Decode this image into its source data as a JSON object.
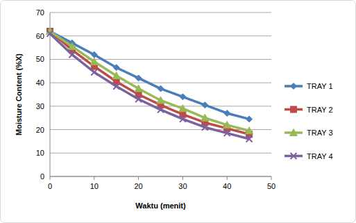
{
  "chart_data": {
    "type": "line",
    "x_label": "Waktu (menit)",
    "y_label": "Moisture Content (%X)",
    "x": [
      0,
      5,
      10,
      15,
      20,
      25,
      30,
      35,
      40,
      45
    ],
    "xlim": [
      0,
      50
    ],
    "xticks": [
      0,
      10,
      20,
      30,
      40,
      50
    ],
    "ylim": [
      0,
      70
    ],
    "yticks": [
      0,
      10,
      20,
      30,
      40,
      50,
      60,
      70
    ],
    "grid": true,
    "legend": "right",
    "series": [
      {
        "name": "TRAY 1",
        "color": "#4a7ebb",
        "marker": "diamond",
        "values": [
          62,
          57,
          52,
          46.5,
          42,
          37.5,
          34,
          30.5,
          27,
          24.5
        ]
      },
      {
        "name": "TRAY 2",
        "color": "#be4b48",
        "marker": "square",
        "values": [
          62,
          54,
          47,
          40.5,
          35,
          30.5,
          26.5,
          23,
          20.5,
          18
        ]
      },
      {
        "name": "TRAY 3",
        "color": "#98b954",
        "marker": "triangle",
        "values": [
          62,
          55.5,
          49,
          43,
          37.5,
          32.5,
          29,
          25,
          22,
          19.5
        ]
      },
      {
        "name": "TRAY 4",
        "color": "#7d60a0",
        "marker": "x",
        "values": [
          61,
          52,
          44.5,
          38.5,
          33,
          28.5,
          24.5,
          21,
          18.5,
          16
        ]
      }
    ]
  }
}
